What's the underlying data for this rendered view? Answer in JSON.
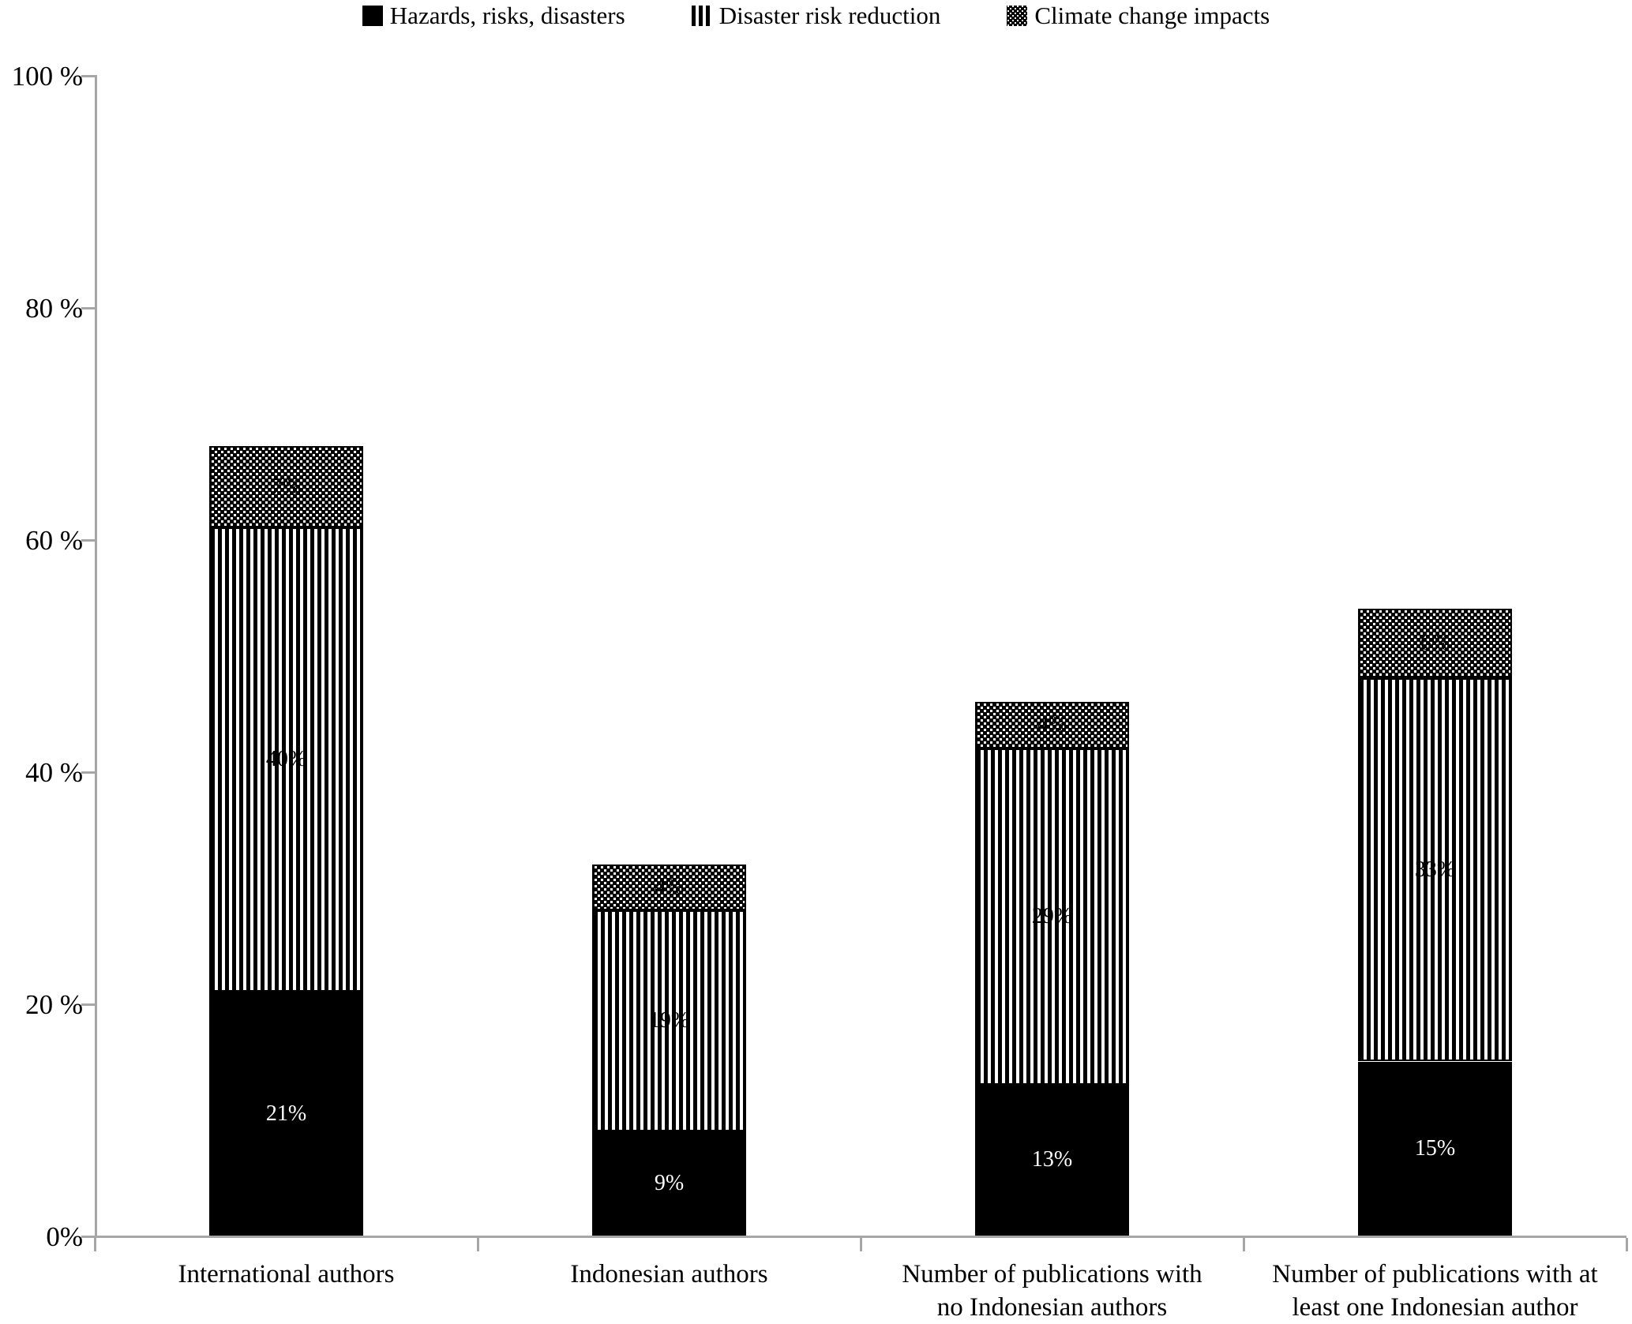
{
  "legend": {
    "items": [
      {
        "label": "Hazards, risks, disasters",
        "pattern": "solid"
      },
      {
        "label": "Disaster risk reduction",
        "pattern": "vstripes"
      },
      {
        "label": "Climate change impacts",
        "pattern": "trellis"
      }
    ]
  },
  "y_axis": {
    "tick_labels": [
      "100 %",
      "80 %",
      "60 %",
      "40 %",
      "20 %",
      "0%"
    ],
    "tick_values": [
      100,
      80,
      60,
      40,
      20,
      0
    ]
  },
  "chart_data": {
    "type": "bar",
    "stacked": true,
    "unit": "percent",
    "title": "",
    "xlabel": "",
    "ylabel": "",
    "ylim": [
      0,
      100
    ],
    "grid": false,
    "legend_position": "top-center",
    "categories": [
      "International authors",
      "Indonesian authors",
      "Number of publications with\nno Indonesian authors",
      "Number of publications with at\nleast one Indonesian author"
    ],
    "series": [
      {
        "name": "Hazards, risks, disasters",
        "pattern": "solid",
        "values": [
          21,
          9,
          13,
          15
        ],
        "labels": [
          "21%",
          "9%",
          "13%",
          "15%"
        ],
        "label_color": "#ffffff"
      },
      {
        "name": "Disaster risk reduction",
        "pattern": "vstripes",
        "values": [
          40,
          19,
          29,
          33
        ],
        "labels": [
          "40%",
          "19%",
          "29%",
          "33%"
        ],
        "label_color": "#000000"
      },
      {
        "name": "Climate change impacts",
        "pattern": "trellis",
        "values": [
          7,
          4,
          4,
          6
        ],
        "labels": [
          "7%",
          "4%",
          "4%",
          "6%"
        ],
        "label_color": "#000000"
      }
    ],
    "colors": {
      "bar_fill": "#000000",
      "pattern_foreground": "#000000",
      "pattern_background": "#ffffff",
      "axis": "#a6a6a6",
      "text": "#000000"
    }
  }
}
